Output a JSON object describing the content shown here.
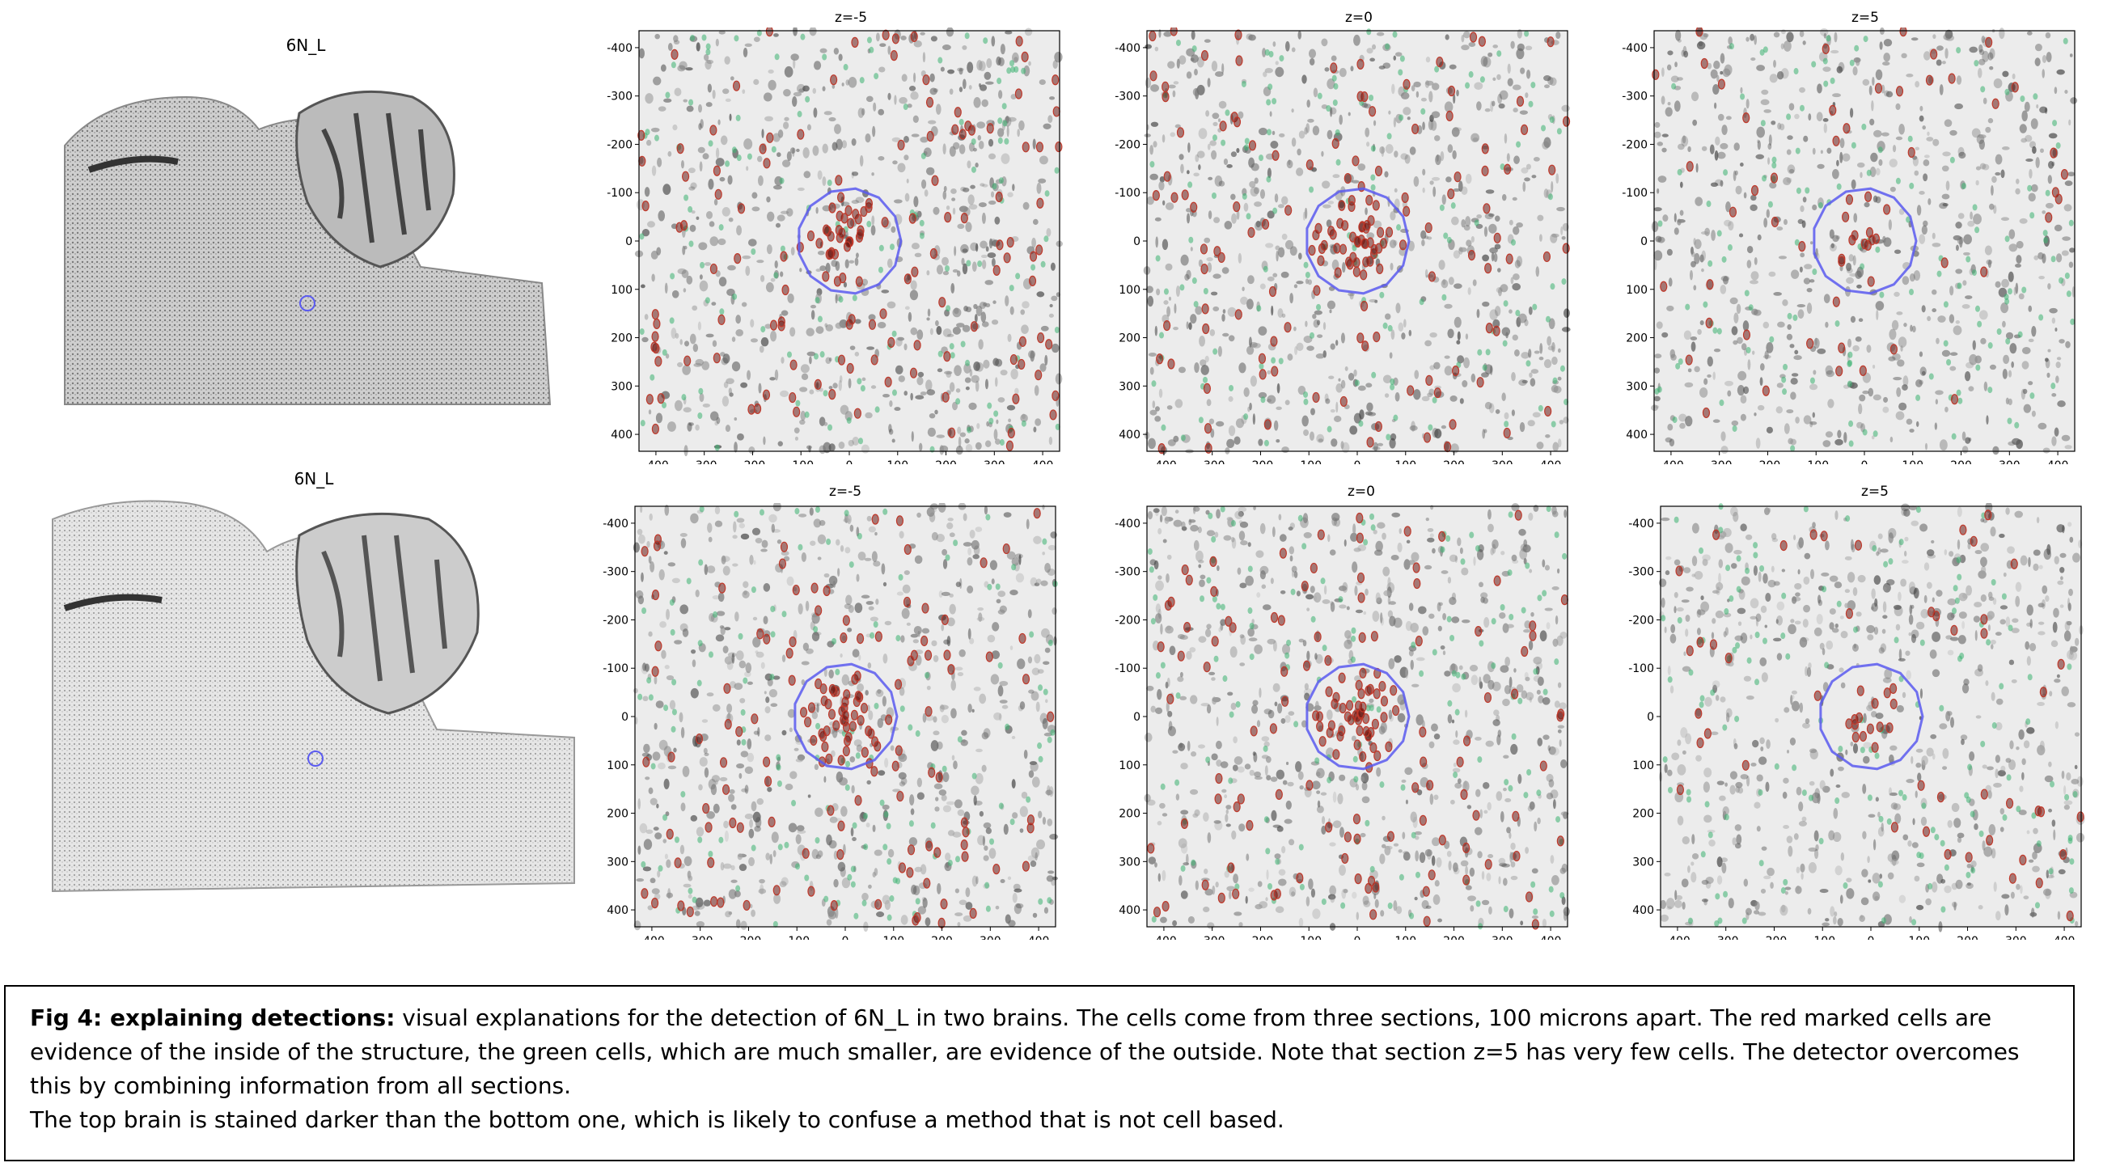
{
  "figure": {
    "rows": [
      {
        "structure_label": "6N_L",
        "panels": [
          {
            "title": "z=-5",
            "ring_fraction": 1.0
          },
          {
            "title": "z=0",
            "ring_fraction": 1.0
          },
          {
            "title": "z=5",
            "ring_fraction": 1.0
          }
        ]
      },
      {
        "structure_label": "6N_L",
        "panels": [
          {
            "title": "z=-5",
            "ring_fraction": 1.0
          },
          {
            "title": "z=0",
            "ring_fraction": 1.0
          },
          {
            "title": "z=5",
            "ring_fraction": 1.0
          }
        ]
      }
    ],
    "axis_ticks": {
      "x": [
        "-400",
        "-300",
        "-200",
        "-100",
        "0",
        "100",
        "200",
        "300",
        "400"
      ],
      "y": [
        "-400",
        "-300",
        "-200",
        "-100",
        "0",
        "100",
        "200",
        "300",
        "400"
      ]
    },
    "colors": {
      "inside_cells": "#c0392b",
      "outside_cells": "#3cb371",
      "structure_outline": "#5b5bf0",
      "tissue": "#9a9a9a"
    }
  },
  "caption": {
    "label": "Fig 4:  explaining detections:",
    "text": " visual explanations for the detection of 6N_L in two brains.  The cells come from three sections, 100 microns apart. The red marked cells are evidence of the inside of the structure, the green cells, which are much smaller, are evidence of the outside. Note that section z=5 has very few cells. The detector overcomes this by combining information from all sections.",
    "text2": "The top brain is stained darker than the bottom one, which is likely to confuse a method that is not cell based."
  }
}
